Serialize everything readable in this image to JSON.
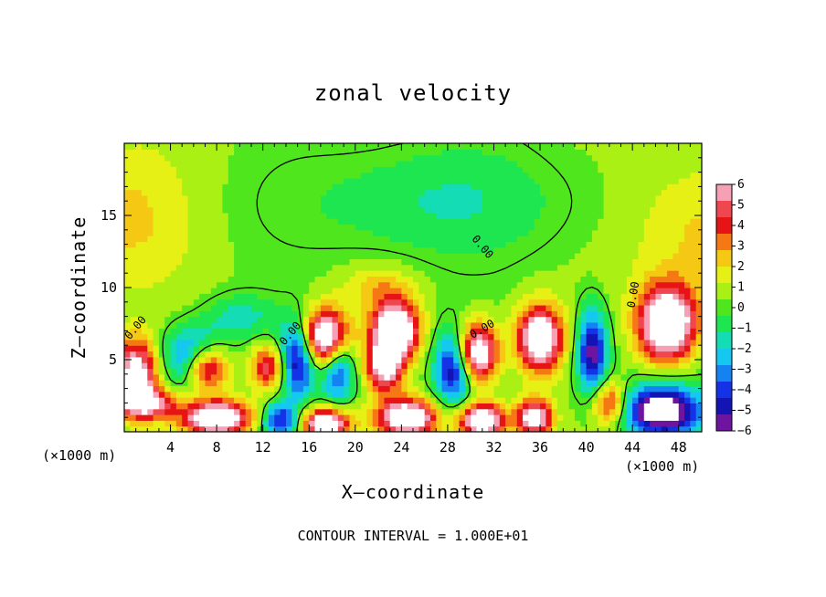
{
  "chart_data": {
    "type": "heatmap",
    "title": "zonal velocity",
    "xlabel": "X–coordinate",
    "ylabel": "Z–coordinate",
    "x_unit_label": "(×1000 m)",
    "z_unit_label": "(×1000 m)",
    "footer": "CONTOUR INTERVAL = 1.000E+01",
    "xlim": [
      0,
      50
    ],
    "ylim": [
      0,
      20
    ],
    "x_ticks": [
      4,
      8,
      12,
      16,
      20,
      24,
      28,
      32,
      36,
      40,
      44,
      48
    ],
    "y_ticks": [
      5,
      10,
      15
    ],
    "colorbar": {
      "ticks": [
        6,
        5,
        4,
        3,
        2,
        1,
        0,
        -1,
        -2,
        -3,
        -4,
        -5,
        -6
      ],
      "range": [
        -6,
        6
      ],
      "colors": [
        "#f5a0b4",
        "#f04650",
        "#e61414",
        "#f57814",
        "#f5c814",
        "#e6f014",
        "#aaf014",
        "#50e61e",
        "#1ee650",
        "#14dcb4",
        "#14c8f0",
        "#1482f0",
        "#1432e6",
        "#1414b4",
        "#6e14a0"
      ]
    },
    "contour_labels": [
      {
        "text": "0.00",
        "x": 1.0,
        "z": 7.2,
        "rotate": -50
      },
      {
        "text": "0.00",
        "x": 14.4,
        "z": 6.8,
        "rotate": -50
      },
      {
        "text": "0.00",
        "x": 31.0,
        "z": 7.1,
        "rotate": -30
      },
      {
        "text": "0.00",
        "x": 31.0,
        "z": 12.8,
        "rotate": 50
      },
      {
        "text": "0.00",
        "x": 44.1,
        "z": 9.5,
        "rotate": -80
      }
    ],
    "field_features": [
      {
        "sign": 1,
        "x": 1.0,
        "z": 4.0,
        "amp": 7,
        "rx": 2.0,
        "rz": 2.5
      },
      {
        "sign": -1,
        "x": 6.0,
        "z": 5.0,
        "amp": 6,
        "rx": 2.5,
        "rz": 2.0
      },
      {
        "sign": 1,
        "x": 7.0,
        "z": 4.5,
        "amp": 8,
        "rx": 2.0,
        "rz": 1.6
      },
      {
        "sign": 1,
        "x": 12.5,
        "z": 4.5,
        "amp": 5,
        "rx": 1.6,
        "rz": 1.6
      },
      {
        "sign": -1,
        "x": 15.0,
        "z": 5.0,
        "amp": 6,
        "rx": 1.6,
        "rz": 2.6
      },
      {
        "sign": 1,
        "x": 17.5,
        "z": 6.5,
        "amp": 9,
        "rx": 2.0,
        "rz": 2.0
      },
      {
        "sign": -1,
        "x": 18.5,
        "z": 4.5,
        "amp": 5,
        "rx": 1.4,
        "rz": 2.5
      },
      {
        "sign": 1,
        "x": 23.5,
        "z": 7.0,
        "amp": 9,
        "rx": 2.0,
        "rz": 2.0
      },
      {
        "sign": 1,
        "x": 22.5,
        "z": 4.5,
        "amp": 6,
        "rx": 1.6,
        "rz": 1.8
      },
      {
        "sign": -1,
        "x": 28.5,
        "z": 4.5,
        "amp": 6,
        "rx": 1.6,
        "rz": 2.5
      },
      {
        "sign": 1,
        "x": 30.5,
        "z": 5.5,
        "amp": 8,
        "rx": 1.8,
        "rz": 2.0
      },
      {
        "sign": 1,
        "x": 36.0,
        "z": 6.5,
        "amp": 8,
        "rx": 2.0,
        "rz": 2.3
      },
      {
        "sign": -1,
        "x": 40.5,
        "z": 5.5,
        "amp": 6,
        "rx": 1.3,
        "rz": 3.0
      },
      {
        "sign": 1,
        "x": 42.0,
        "z": 2.0,
        "amp": 5,
        "rx": 1.6,
        "rz": 1.5
      },
      {
        "sign": 1,
        "x": 47.0,
        "z": 7.5,
        "amp": 9,
        "rx": 2.5,
        "rz": 2.6
      },
      {
        "sign": -1,
        "x": 46.5,
        "z": 1.5,
        "amp": 8,
        "rx": 3.5,
        "rz": 1.8
      },
      {
        "sign": 1,
        "x": 8.0,
        "z": 1.0,
        "amp": 8,
        "rx": 3.0,
        "rz": 1.2
      },
      {
        "sign": -1,
        "x": 13.5,
        "z": 0.8,
        "amp": 5,
        "rx": 1.5,
        "rz": 1.2
      },
      {
        "sign": 1,
        "x": 17.5,
        "z": 0.6,
        "amp": 8,
        "rx": 2.0,
        "rz": 1.1
      },
      {
        "sign": 1,
        "x": 24.5,
        "z": 1.0,
        "amp": 8,
        "rx": 2.5,
        "rz": 1.3
      },
      {
        "sign": 1,
        "x": 31.0,
        "z": 0.8,
        "amp": 8,
        "rx": 2.0,
        "rz": 1.2
      },
      {
        "sign": 1,
        "x": 35.5,
        "z": 1.0,
        "amp": 7,
        "rx": 1.5,
        "rz": 1.3
      },
      {
        "sign": 1,
        "x": 2.0,
        "z": 2.0,
        "amp": 5,
        "rx": 2.5,
        "rz": 1.0
      },
      {
        "sign": 1,
        "x": 22.0,
        "z": 10.0,
        "amp": 2,
        "rx": 3.0,
        "rz": 1.5
      },
      {
        "sign": -1,
        "x": 10.0,
        "z": 8.0,
        "amp": 2,
        "rx": 3.0,
        "rz": 1.5
      },
      {
        "sign": 1,
        "x": 0.0,
        "z": 15.0,
        "amp": 2,
        "rx": 6.0,
        "rz": 5.0
      },
      {
        "sign": -1,
        "x": 27.0,
        "z": 16.0,
        "amp": 1.5,
        "rx": 10.0,
        "rz": 4.0
      },
      {
        "sign": 1,
        "x": 50.0,
        "z": 14.0,
        "amp": 2,
        "rx": 6.0,
        "rz": 5.0
      }
    ]
  }
}
